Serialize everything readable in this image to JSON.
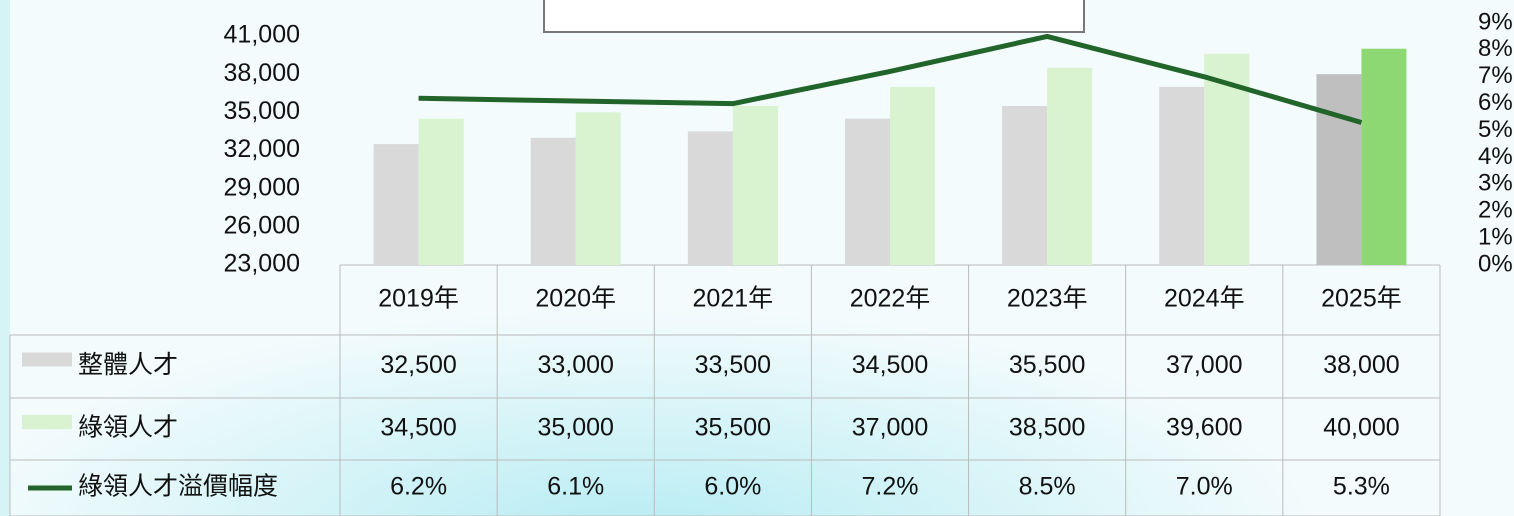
{
  "chart_data": {
    "type": "bar",
    "categories": [
      "2019年",
      "2020年",
      "2021年",
      "2022年",
      "2023年",
      "2024年",
      "2025年"
    ],
    "series": [
      {
        "name": "整體人才",
        "color": "#d9d9d9",
        "colors": [
          "#d9d9d9",
          "#d9d9d9",
          "#d9d9d9",
          "#d9d9d9",
          "#d9d9d9",
          "#d9d9d9",
          "#bfbfbf"
        ],
        "values": [
          32500,
          33000,
          33500,
          34500,
          35500,
          37000,
          38000
        ],
        "value_labels": [
          "32,500",
          "33,000",
          "33,500",
          "34,500",
          "35,500",
          "37,000",
          "38,000"
        ]
      },
      {
        "name": "綠領人才",
        "color": "#d9f2d0",
        "colors": [
          "#d9f2d0",
          "#d9f2d0",
          "#d9f2d0",
          "#d9f2d0",
          "#d9f2d0",
          "#d9f2d0",
          "#8ed873"
        ],
        "values": [
          34500,
          35000,
          35500,
          37000,
          38500,
          39600,
          40000
        ],
        "value_labels": [
          "34,500",
          "35,000",
          "35,500",
          "37,000",
          "38,500",
          "39,600",
          "40,000"
        ]
      },
      {
        "name": "綠領人才溢價幅度",
        "type": "line",
        "axis": "y2",
        "color": "#22652a",
        "values": [
          6.2,
          6.1,
          6.0,
          7.2,
          8.5,
          7.0,
          5.3
        ],
        "value_labels": [
          "6.2%",
          "6.1%",
          "6.0%",
          "7.2%",
          "8.5%",
          "7.0%",
          "5.3%"
        ]
      }
    ],
    "ylim": [
      23000,
      41000
    ],
    "yticks": [
      {
        "value": 23000,
        "label": "23,000"
      },
      {
        "value": 26000,
        "label": "26,000"
      },
      {
        "value": 29000,
        "label": "29,000"
      },
      {
        "value": 32000,
        "label": "32,000"
      },
      {
        "value": 35000,
        "label": "35,000"
      },
      {
        "value": 38000,
        "label": "38,000"
      },
      {
        "value": 41000,
        "label": "41,000"
      }
    ],
    "y2lim": [
      0,
      9
    ],
    "y2ticks": [
      {
        "value": 0,
        "label": "0%"
      },
      {
        "value": 1,
        "label": "1%"
      },
      {
        "value": 2,
        "label": "2%"
      },
      {
        "value": 3,
        "label": "3%"
      },
      {
        "value": 4,
        "label": "4%"
      },
      {
        "value": 5,
        "label": "5%"
      },
      {
        "value": 6,
        "label": "6%"
      },
      {
        "value": 7,
        "label": "7%"
      },
      {
        "value": 8,
        "label": "8%"
      },
      {
        "value": 9,
        "label": "9%"
      }
    ],
    "data_table": true
  }
}
